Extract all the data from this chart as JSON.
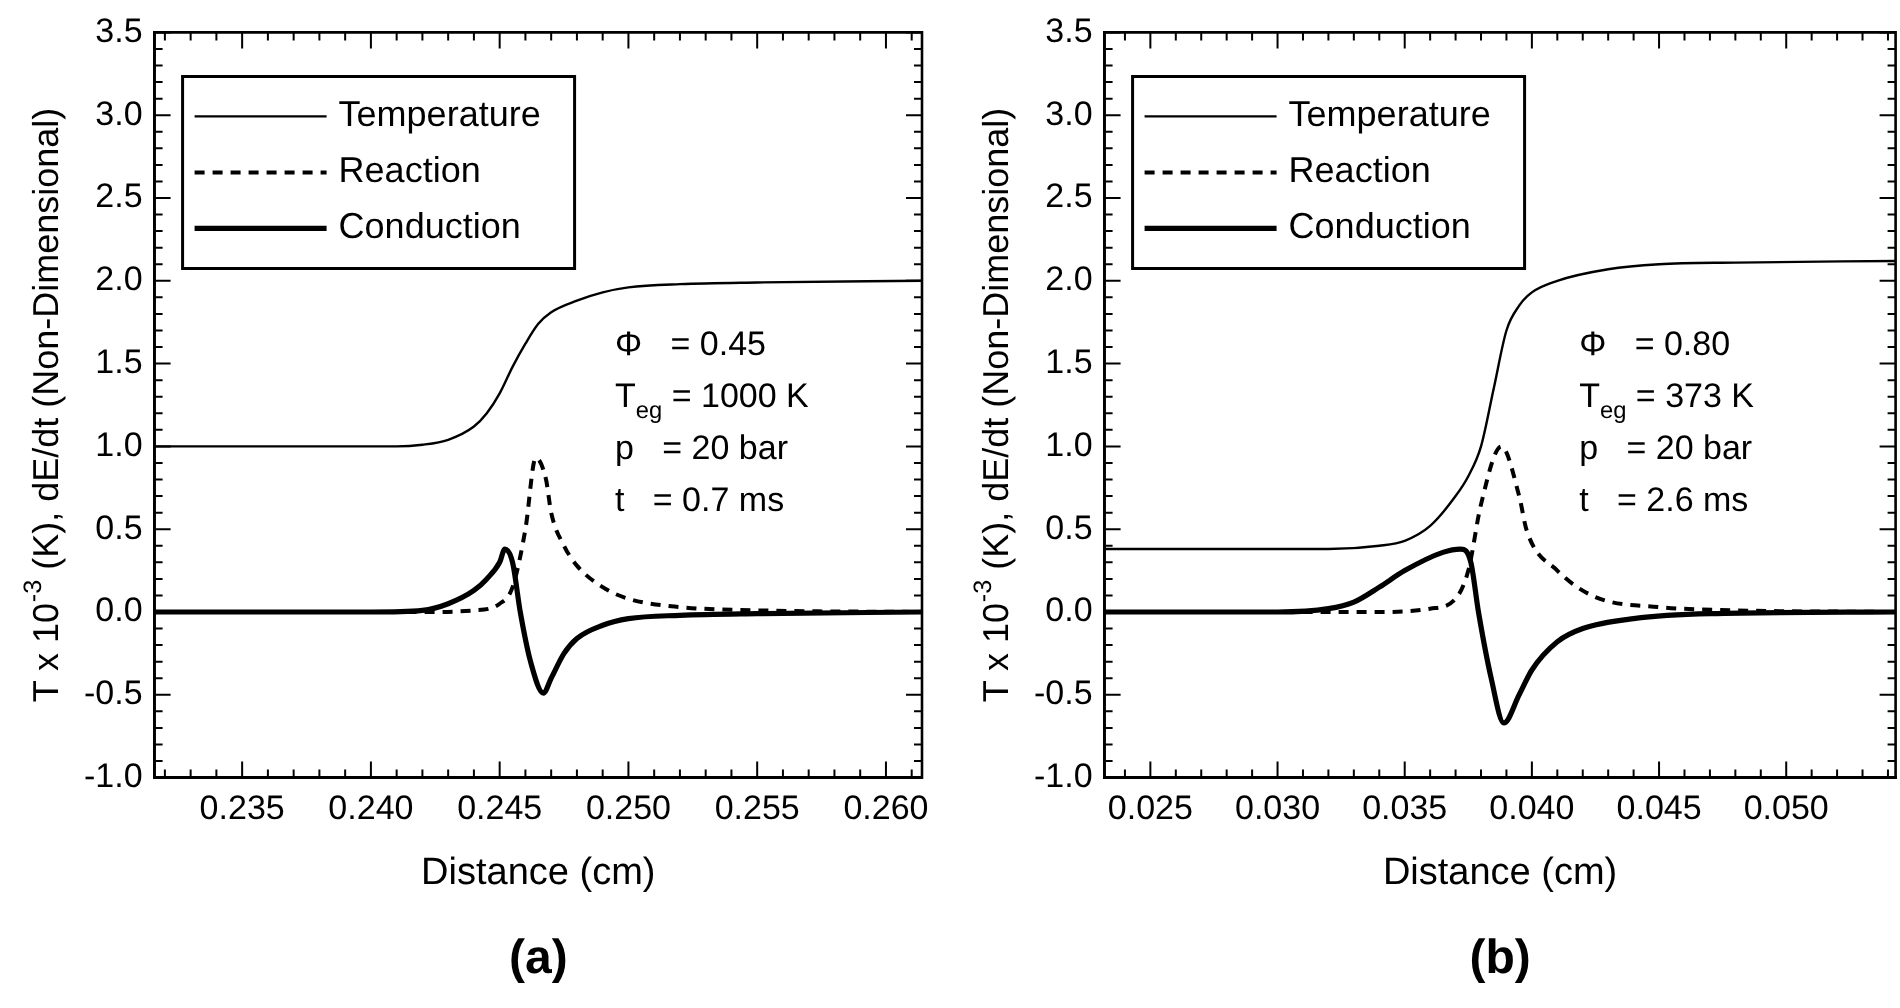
{
  "chart_data": [
    {
      "type": "line",
      "title": "(a)",
      "xlabel": "Distance (cm)",
      "ylabel": "T x 10$^{-3}$ (K), dE/dt (Non-Dimensional)",
      "legend": "top left",
      "marker": "none",
      "grid": false,
      "xlim": [
        0.2316,
        0.2614
      ],
      "xticks": [
        0.235,
        {
          "value": 0.236,
          "label": null
        },
        {
          "value": 0.237,
          "label": null
        },
        {
          "value": 0.238,
          "label": null
        },
        {
          "value": 0.239,
          "label": null
        },
        {
          "value": 0.24,
          "label": "0.240"
        },
        {
          "value": 0.241,
          "label": null
        },
        {
          "value": 0.242,
          "label": null
        },
        {
          "value": 0.243,
          "label": null
        },
        {
          "value": 0.244,
          "label": null
        },
        0.245,
        {
          "value": 0.246,
          "label": null
        },
        {
          "value": 0.247,
          "label": null
        },
        {
          "value": 0.248,
          "label": null
        },
        {
          "value": 0.249,
          "label": null
        },
        {
          "value": 0.25,
          "label": "0.250"
        },
        {
          "value": 0.251,
          "label": null
        },
        {
          "value": 0.252,
          "label": null
        },
        {
          "value": 0.253,
          "label": null
        },
        {
          "value": 0.254,
          "label": null
        },
        0.255,
        {
          "value": 0.256,
          "label": null
        },
        {
          "value": 0.257,
          "label": null
        },
        {
          "value": 0.258,
          "label": null
        },
        {
          "value": 0.259,
          "label": null
        },
        {
          "value": 0.26,
          "label": "0.260"
        },
        {
          "value": 0.232,
          "label": null
        },
        {
          "value": 0.233,
          "label": null
        },
        {
          "value": 0.234,
          "label": null
        },
        {
          "value": 0.261,
          "label": null
        }
      ],
      "ylim": [
        -1,
        3.5
      ],
      "yticks": [
        {
          "value": -1,
          "label": "-1.0"
        },
        {
          "value": -0.9,
          "label": null
        },
        {
          "value": -0.8,
          "label": null
        },
        {
          "value": -0.7,
          "label": null
        },
        {
          "value": -0.6,
          "label": null
        },
        -0.5,
        {
          "value": -0.4,
          "label": null
        },
        {
          "value": -0.3,
          "label": null
        },
        {
          "value": -0.2,
          "label": null
        },
        {
          "value": -0.1,
          "label": null
        },
        {
          "value": 0,
          "label": "0.0"
        },
        {
          "value": 0.1,
          "label": null
        },
        {
          "value": 0.2,
          "label": null
        },
        {
          "value": 0.3,
          "label": null
        },
        {
          "value": 0.4,
          "label": null
        },
        0.5,
        {
          "value": 0.6,
          "label": null
        },
        {
          "value": 0.7,
          "label": null
        },
        {
          "value": 0.8,
          "label": null
        },
        {
          "value": 0.9,
          "label": null
        },
        {
          "value": 1,
          "label": "1.0"
        },
        {
          "value": 1.1,
          "label": null
        },
        {
          "value": 1.2,
          "label": null
        },
        {
          "value": 1.3,
          "label": null
        },
        {
          "value": 1.4,
          "label": null
        },
        1.5,
        {
          "value": 1.6,
          "label": null
        },
        {
          "value": 1.7,
          "label": null
        },
        {
          "value": 1.8,
          "label": null
        },
        {
          "value": 1.9,
          "label": null
        },
        {
          "value": 2,
          "label": "2.0"
        },
        {
          "value": 2.1,
          "label": null
        },
        {
          "value": 2.2,
          "label": null
        },
        {
          "value": 2.3,
          "label": null
        },
        {
          "value": 2.4,
          "label": null
        },
        2.5,
        {
          "value": 2.6,
          "label": null
        },
        {
          "value": 2.7,
          "label": null
        },
        {
          "value": 2.8,
          "label": null
        },
        {
          "value": 2.9,
          "label": null
        },
        {
          "value": 3,
          "label": "3.0"
        },
        {
          "value": 3.1,
          "label": null
        },
        {
          "value": 3.2,
          "label": null
        },
        {
          "value": 3.3,
          "label": null
        },
        {
          "value": 3.4,
          "label": null
        },
        3.5
      ],
      "annotations": [
        "Φ   = 0.45",
        "T$_{eg}$ = 1000 K",
        "p   = 20 bar",
        "t   = 0.7 ms"
      ],
      "series": [
        {
          "name": "Temperature",
          "color": "#000000",
          "line_style": "solid",
          "x": [
            0.2316,
            0.238,
            0.241,
            0.242,
            0.243,
            0.244,
            0.2445,
            0.245,
            0.2455,
            0.246,
            0.2465,
            0.247,
            0.248,
            0.249,
            0.25,
            0.252,
            0.255,
            0.2614
          ],
          "values": [
            1.0,
            1.0,
            1.0,
            1.01,
            1.04,
            1.12,
            1.2,
            1.32,
            1.48,
            1.62,
            1.74,
            1.81,
            1.88,
            1.93,
            1.96,
            1.98,
            1.99,
            2.0
          ]
        },
        {
          "name": "Reaction",
          "color": "#000000",
          "line_style": "dashed",
          "x": [
            0.2316,
            0.242,
            0.244,
            0.245,
            0.2455,
            0.246,
            0.2464,
            0.2468,
            0.247,
            0.2475,
            0.248,
            0.249,
            0.25,
            0.252,
            0.255,
            0.2614
          ],
          "values": [
            0,
            0,
            0.01,
            0.05,
            0.15,
            0.5,
            0.93,
            0.8,
            0.6,
            0.4,
            0.28,
            0.15,
            0.08,
            0.03,
            0.01,
            0
          ]
        },
        {
          "name": "Conduction",
          "color": "#000000",
          "line_style": "solid",
          "x": [
            0.2316,
            0.24,
            0.242,
            0.243,
            0.244,
            0.2445,
            0.245,
            0.2452,
            0.2455,
            0.2458,
            0.2462,
            0.2467,
            0.247,
            0.2475,
            0.248,
            0.249,
            0.25,
            0.252,
            0.255,
            0.2614
          ],
          "values": [
            0,
            0,
            0.01,
            0.05,
            0.13,
            0.2,
            0.3,
            0.38,
            0.3,
            0,
            -0.3,
            -0.49,
            -0.4,
            -0.25,
            -0.16,
            -0.08,
            -0.04,
            -0.02,
            -0.01,
            0
          ]
        }
      ]
    },
    {
      "type": "line",
      "title": "(b)",
      "xlabel": "Distance (cm)",
      "ylabel": "T x 10$^{-3}$ (K), dE/dt (Non-Dimensional)",
      "legend": "top left",
      "marker": "none",
      "grid": false,
      "xlim": [
        0.0232,
        0.0543
      ],
      "xticks": [
        {
          "value": 0.024,
          "label": null
        },
        0.025,
        {
          "value": 0.026,
          "label": null
        },
        {
          "value": 0.027,
          "label": null
        },
        {
          "value": 0.028,
          "label": null
        },
        {
          "value": 0.029,
          "label": null
        },
        {
          "value": 0.03,
          "label": "0.030"
        },
        {
          "value": 0.031,
          "label": null
        },
        {
          "value": 0.032,
          "label": null
        },
        {
          "value": 0.033,
          "label": null
        },
        {
          "value": 0.034,
          "label": null
        },
        0.035,
        {
          "value": 0.036,
          "label": null
        },
        {
          "value": 0.037,
          "label": null
        },
        {
          "value": 0.038,
          "label": null
        },
        {
          "value": 0.039,
          "label": null
        },
        {
          "value": 0.04,
          "label": "0.040"
        },
        {
          "value": 0.041,
          "label": null
        },
        {
          "value": 0.042,
          "label": null
        },
        {
          "value": 0.043,
          "label": null
        },
        {
          "value": 0.044,
          "label": null
        },
        0.045,
        {
          "value": 0.046,
          "label": null
        },
        {
          "value": 0.047,
          "label": null
        },
        {
          "value": 0.048,
          "label": null
        },
        {
          "value": 0.049,
          "label": null
        },
        {
          "value": 0.05,
          "label": "0.050"
        },
        {
          "value": 0.051,
          "label": null
        },
        {
          "value": 0.052,
          "label": null
        },
        {
          "value": 0.053,
          "label": null
        },
        {
          "value": 0.054,
          "label": null
        }
      ],
      "ylim": [
        -1,
        3.5
      ],
      "yticks": [
        {
          "value": -1,
          "label": "-1.0"
        },
        {
          "value": -0.9,
          "label": null
        },
        {
          "value": -0.8,
          "label": null
        },
        {
          "value": -0.7,
          "label": null
        },
        {
          "value": -0.6,
          "label": null
        },
        -0.5,
        {
          "value": -0.4,
          "label": null
        },
        {
          "value": -0.3,
          "label": null
        },
        {
          "value": -0.2,
          "label": null
        },
        {
          "value": -0.1,
          "label": null
        },
        {
          "value": 0,
          "label": "0.0"
        },
        {
          "value": 0.1,
          "label": null
        },
        {
          "value": 0.2,
          "label": null
        },
        {
          "value": 0.3,
          "label": null
        },
        {
          "value": 0.4,
          "label": null
        },
        0.5,
        {
          "value": 0.6,
          "label": null
        },
        {
          "value": 0.7,
          "label": null
        },
        {
          "value": 0.8,
          "label": null
        },
        {
          "value": 0.9,
          "label": null
        },
        {
          "value": 1,
          "label": "1.0"
        },
        {
          "value": 1.1,
          "label": null
        },
        {
          "value": 1.2,
          "label": null
        },
        {
          "value": 1.3,
          "label": null
        },
        {
          "value": 1.4,
          "label": null
        },
        1.5,
        {
          "value": 1.6,
          "label": null
        },
        {
          "value": 1.7,
          "label": null
        },
        {
          "value": 1.8,
          "label": null
        },
        {
          "value": 1.9,
          "label": null
        },
        {
          "value": 2,
          "label": "2.0"
        },
        {
          "value": 2.1,
          "label": null
        },
        {
          "value": 2.2,
          "label": null
        },
        {
          "value": 2.3,
          "label": null
        },
        {
          "value": 2.4,
          "label": null
        },
        2.5,
        {
          "value": 2.6,
          "label": null
        },
        {
          "value": 2.7,
          "label": null
        },
        {
          "value": 2.8,
          "label": null
        },
        {
          "value": 2.9,
          "label": null
        },
        {
          "value": 3,
          "label": "3.0"
        },
        {
          "value": 3.1,
          "label": null
        },
        {
          "value": 3.2,
          "label": null
        },
        {
          "value": 3.3,
          "label": null
        },
        {
          "value": 3.4,
          "label": null
        },
        3.5
      ],
      "annotations": [
        "Φ   = 0.80",
        "T$_{eg}$ = 373 K",
        "p   = 20 bar",
        "t   = 2.6 ms"
      ],
      "series": [
        {
          "name": "Temperature",
          "color": "#000000",
          "line_style": "solid",
          "x": [
            0.0232,
            0.032,
            0.034,
            0.035,
            0.036,
            0.037,
            0.0375,
            0.038,
            0.0385,
            0.039,
            0.0395,
            0.04,
            0.041,
            0.043,
            0.045,
            0.048,
            0.0543
          ],
          "values": [
            0.38,
            0.38,
            0.4,
            0.43,
            0.52,
            0.7,
            0.82,
            1.0,
            1.35,
            1.7,
            1.85,
            1.93,
            2.0,
            2.07,
            2.1,
            2.11,
            2.12
          ]
        },
        {
          "name": "Reaction",
          "color": "#000000",
          "line_style": "dashed",
          "x": [
            0.0232,
            0.034,
            0.036,
            0.037,
            0.0375,
            0.038,
            0.0388,
            0.0395,
            0.0398,
            0.041,
            0.0425,
            0.045,
            0.048,
            0.0543
          ],
          "values": [
            0,
            0,
            0.02,
            0.08,
            0.25,
            0.65,
            1.0,
            0.7,
            0.49,
            0.25,
            0.09,
            0.03,
            0.01,
            0
          ]
        },
        {
          "name": "Conduction",
          "color": "#000000",
          "line_style": "solid",
          "x": [
            0.0232,
            0.03,
            0.032,
            0.033,
            0.034,
            0.035,
            0.0365,
            0.0372,
            0.0376,
            0.0379,
            0.0384,
            0.0389,
            0.0395,
            0.04,
            0.041,
            0.042,
            0.044,
            0.047,
            0.0543
          ],
          "values": [
            0,
            0,
            0.02,
            0.06,
            0.15,
            0.25,
            0.36,
            0.38,
            0.3,
            0,
            -0.4,
            -0.67,
            -0.5,
            -0.35,
            -0.18,
            -0.1,
            -0.04,
            -0.01,
            0
          ]
        }
      ]
    }
  ]
}
